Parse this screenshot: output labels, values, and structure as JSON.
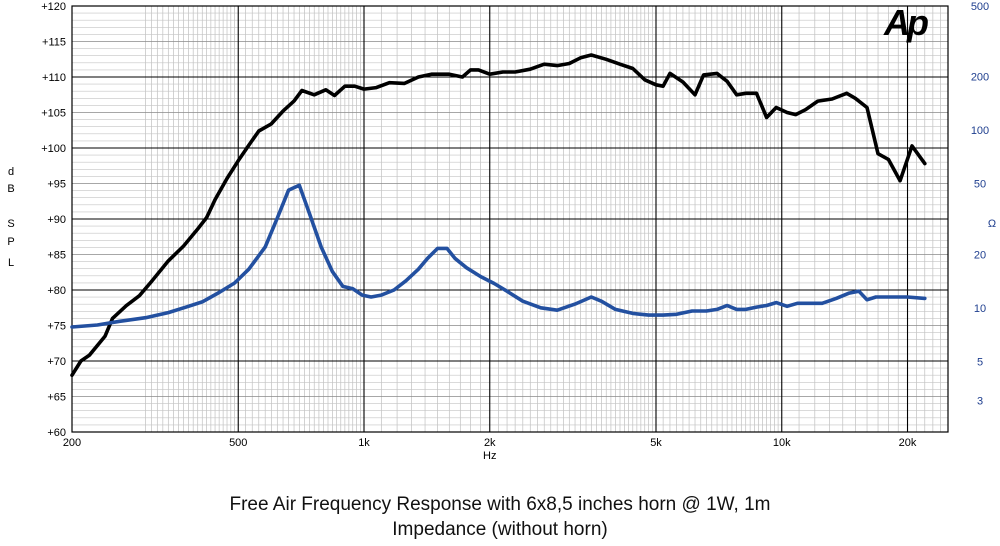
{
  "logo_text": "Ap",
  "caption_line1": "Free Air Frequency Response with 6x8,5 inches horn @ 1W, 1m",
  "caption_line2": "Impedance (without horn)",
  "chart_data": {
    "type": "line",
    "x_scale": "log",
    "xlim": [
      200,
      25000
    ],
    "xlabel": "Hz",
    "x_tick_labels": [
      {
        "value": 200,
        "label": "200"
      },
      {
        "value": 500,
        "label": "500"
      },
      {
        "value": 1000,
        "label": "1k"
      },
      {
        "value": 2000,
        "label": "2k"
      },
      {
        "value": 5000,
        "label": "5k"
      },
      {
        "value": 10000,
        "label": "10k"
      },
      {
        "value": 20000,
        "label": "20k"
      }
    ],
    "ylim": [
      60,
      120
    ],
    "ylabel_letters": [
      "d",
      "B",
      "S",
      "P",
      "L"
    ],
    "y_tick_labels": [
      "+60",
      "+65",
      "+70",
      "+75",
      "+80",
      "+85",
      "+90",
      "+95",
      "+100",
      "+105",
      "+110",
      "+115",
      "+120"
    ],
    "y2_scale": "log",
    "y2lim": [
      2,
      500
    ],
    "y2label": "Ω",
    "y2_tick_labels": [
      {
        "value": 3,
        "label": "3"
      },
      {
        "value": 5,
        "label": "5"
      },
      {
        "value": 10,
        "label": "10"
      },
      {
        "value": 20,
        "label": "20"
      },
      {
        "value": 50,
        "label": "50"
      },
      {
        "value": 100,
        "label": "100"
      },
      {
        "value": 200,
        "label": "200"
      },
      {
        "value": 500,
        "label": "500"
      }
    ],
    "grid": true,
    "colors": {
      "spl": "#000000",
      "impedance": "#2350a0",
      "right_axis": "#1f3f8f"
    },
    "series": [
      {
        "axis": "left",
        "color": "#000000",
        "points": [
          [
            200,
            68
          ],
          [
            210,
            70
          ],
          [
            220,
            70.8
          ],
          [
            240,
            73.5
          ],
          [
            250,
            76
          ],
          [
            270,
            77.8
          ],
          [
            290,
            79.2
          ],
          [
            310,
            81.2
          ],
          [
            340,
            84.1
          ],
          [
            370,
            86.2
          ],
          [
            400,
            88.6
          ],
          [
            420,
            90.2
          ],
          [
            440,
            92.7
          ],
          [
            470,
            95.7
          ],
          [
            500,
            98.2
          ],
          [
            530,
            100.4
          ],
          [
            560,
            102.4
          ],
          [
            600,
            103.4
          ],
          [
            640,
            105.2
          ],
          [
            680,
            106.6
          ],
          [
            710,
            108.1
          ],
          [
            760,
            107.5
          ],
          [
            810,
            108.2
          ],
          [
            850,
            107.4
          ],
          [
            900,
            108.7
          ],
          [
            950,
            108.7
          ],
          [
            1000,
            108.3
          ],
          [
            1070,
            108.5
          ],
          [
            1150,
            109.2
          ],
          [
            1250,
            109.1
          ],
          [
            1350,
            110.0
          ],
          [
            1450,
            110.4
          ],
          [
            1600,
            110.4
          ],
          [
            1720,
            110.0
          ],
          [
            1800,
            111.0
          ],
          [
            1880,
            111.0
          ],
          [
            2000,
            110.4
          ],
          [
            2150,
            110.7
          ],
          [
            2300,
            110.7
          ],
          [
            2500,
            111.1
          ],
          [
            2700,
            111.8
          ],
          [
            2900,
            111.6
          ],
          [
            3100,
            111.9
          ],
          [
            3300,
            112.7
          ],
          [
            3500,
            113.1
          ],
          [
            3800,
            112.5
          ],
          [
            4100,
            111.8
          ],
          [
            4400,
            111.2
          ],
          [
            4700,
            109.6
          ],
          [
            5000,
            108.9
          ],
          [
            5200,
            108.7
          ],
          [
            5400,
            110.5
          ],
          [
            5800,
            109.3
          ],
          [
            6200,
            107.5
          ],
          [
            6500,
            110.3
          ],
          [
            7000,
            110.5
          ],
          [
            7400,
            109.4
          ],
          [
            7800,
            107.5
          ],
          [
            8200,
            107.7
          ],
          [
            8700,
            107.7
          ],
          [
            9200,
            104.3
          ],
          [
            9700,
            105.7
          ],
          [
            10300,
            105.0
          ],
          [
            10800,
            104.7
          ],
          [
            11400,
            105.4
          ],
          [
            12200,
            106.6
          ],
          [
            13200,
            106.9
          ],
          [
            14300,
            107.7
          ],
          [
            15000,
            107.0
          ],
          [
            16000,
            105.7
          ],
          [
            17000,
            99.2
          ],
          [
            18000,
            98.4
          ],
          [
            19200,
            95.4
          ],
          [
            20500,
            100.3
          ],
          [
            22000,
            97.8
          ]
        ]
      },
      {
        "axis": "right",
        "color": "#2350a0",
        "points": [
          [
            200,
            7.8
          ],
          [
            230,
            8.0
          ],
          [
            260,
            8.4
          ],
          [
            300,
            8.8
          ],
          [
            340,
            9.4
          ],
          [
            380,
            10.2
          ],
          [
            410,
            10.8
          ],
          [
            450,
            12.2
          ],
          [
            490,
            13.8
          ],
          [
            530,
            16.5
          ],
          [
            580,
            22
          ],
          [
            620,
            32
          ],
          [
            660,
            46
          ],
          [
            700,
            49
          ],
          [
            740,
            34
          ],
          [
            790,
            22
          ],
          [
            840,
            16
          ],
          [
            890,
            13.2
          ],
          [
            940,
            12.8
          ],
          [
            990,
            11.8
          ],
          [
            1040,
            11.5
          ],
          [
            1100,
            11.8
          ],
          [
            1180,
            12.6
          ],
          [
            1260,
            14.2
          ],
          [
            1350,
            16.5
          ],
          [
            1420,
            19.0
          ],
          [
            1500,
            21.6
          ],
          [
            1580,
            21.6
          ],
          [
            1650,
            19.0
          ],
          [
            1760,
            16.8
          ],
          [
            1900,
            15.0
          ],
          [
            2050,
            13.7
          ],
          [
            2200,
            12.4
          ],
          [
            2400,
            10.9
          ],
          [
            2650,
            10.0
          ],
          [
            2900,
            9.7
          ],
          [
            3200,
            10.5
          ],
          [
            3500,
            11.5
          ],
          [
            3700,
            10.9
          ],
          [
            4000,
            9.8
          ],
          [
            4400,
            9.3
          ],
          [
            4800,
            9.1
          ],
          [
            5200,
            9.1
          ],
          [
            5600,
            9.2
          ],
          [
            6100,
            9.6
          ],
          [
            6600,
            9.6
          ],
          [
            7000,
            9.8
          ],
          [
            7400,
            10.3
          ],
          [
            7800,
            9.8
          ],
          [
            8200,
            9.8
          ],
          [
            8700,
            10.1
          ],
          [
            9200,
            10.3
          ],
          [
            9700,
            10.7
          ],
          [
            10300,
            10.2
          ],
          [
            10900,
            10.6
          ],
          [
            11700,
            10.6
          ],
          [
            12500,
            10.6
          ],
          [
            13500,
            11.3
          ],
          [
            14500,
            12.1
          ],
          [
            15300,
            12.4
          ],
          [
            16000,
            11.1
          ],
          [
            16800,
            11.5
          ],
          [
            18000,
            11.5
          ],
          [
            20000,
            11.5
          ],
          [
            22000,
            11.3
          ]
        ]
      }
    ]
  }
}
